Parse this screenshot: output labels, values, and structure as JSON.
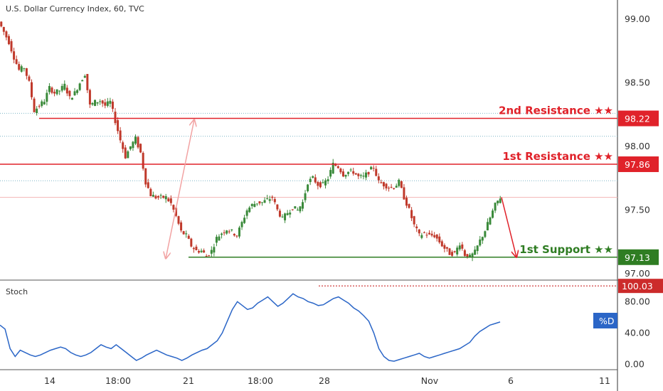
{
  "header": {
    "title": "U.S. Dollar Currency Index, 60, TVC"
  },
  "colors": {
    "resistance": "#e0222a",
    "support": "#2f7d23",
    "stoch_line": "#2b66c7",
    "stoch_overbought": "#cc2b2b",
    "candle_up": "#3a8a3a",
    "candle_down": "#c0392b",
    "pink_arrow": "#f2a3a3"
  },
  "chart_data": [
    {
      "type": "candlestick",
      "title": "U.S. Dollar Currency Index, 60, TVC",
      "ylim": [
        96.95,
        99.15
      ],
      "y_ticks": [
        "99.00",
        "98.50",
        "98.00",
        "97.50",
        "97.00"
      ],
      "x_ticks": [
        "14",
        "18:00",
        "21",
        "18:00",
        "28",
        "Nov",
        "6",
        "11"
      ],
      "close_path": [
        98.98,
        98.9,
        98.82,
        98.7,
        98.6,
        98.62,
        98.5,
        98.28,
        98.32,
        98.36,
        98.46,
        98.42,
        98.44,
        98.48,
        98.38,
        98.42,
        98.5,
        98.57,
        98.32,
        98.35,
        98.36,
        98.32,
        98.35,
        98.2,
        98.05,
        97.92,
        98.0,
        98.06,
        97.95,
        97.72,
        97.62,
        97.6,
        97.6,
        97.6,
        97.55,
        97.45,
        97.33,
        97.3,
        97.22,
        97.18,
        97.18,
        97.14,
        97.18,
        97.28,
        97.32,
        97.35,
        97.33,
        97.3,
        97.4,
        97.5,
        97.54,
        97.56,
        97.56,
        97.58,
        97.6,
        97.5,
        97.43,
        97.48,
        97.52,
        97.5,
        97.56,
        97.72,
        97.75,
        97.7,
        97.7,
        97.75,
        97.86,
        97.84,
        97.78,
        97.8,
        97.8,
        97.76,
        97.76,
        97.8,
        97.84,
        97.72,
        97.7,
        97.68,
        97.68,
        97.72,
        97.6,
        97.5,
        97.38,
        97.3,
        97.32,
        97.3,
        97.3,
        97.25,
        97.2,
        97.16,
        97.16,
        97.24,
        97.15,
        97.13,
        97.17,
        97.26,
        97.34,
        97.44,
        97.54,
        97.6
      ],
      "levels": [
        {
          "label": "2nd Resistance ★★",
          "value": "98.22",
          "kind": "resistance"
        },
        {
          "label": "1st Resistance ★★",
          "value": "97.86",
          "kind": "resistance"
        },
        {
          "label": "1st Support ★★",
          "value": "97.13",
          "kind": "support"
        }
      ]
    },
    {
      "type": "line",
      "title": "Stoch",
      "ylim": [
        -5,
        102
      ],
      "y_ticks": [
        "80.00",
        "40.00",
        "0.00"
      ],
      "overbought_value": "100.03",
      "legend_badge": "%D",
      "series": [
        {
          "name": "",
          "values": [
            50,
            45,
            20,
            10,
            18,
            15,
            12,
            10,
            12,
            15,
            18,
            20,
            22,
            20,
            15,
            12,
            10,
            12,
            15,
            20,
            25,
            22,
            20,
            25,
            20,
            15,
            10,
            5,
            8,
            12,
            15,
            18,
            15,
            12,
            10,
            8,
            5,
            8,
            12,
            15,
            18,
            20,
            25,
            30,
            40,
            55,
            70,
            80,
            75,
            70,
            72,
            78,
            82,
            86,
            80,
            74,
            78,
            84,
            90,
            86,
            84,
            80,
            78,
            75,
            76,
            80,
            84,
            86,
            82,
            78,
            72,
            68,
            62,
            55,
            40,
            20,
            10,
            5,
            4,
            6,
            8,
            10,
            12,
            14,
            10,
            8,
            10,
            12,
            14,
            16,
            18,
            20,
            24,
            28,
            36,
            42,
            46,
            50,
            52,
            54
          ]
        }
      ]
    }
  ]
}
